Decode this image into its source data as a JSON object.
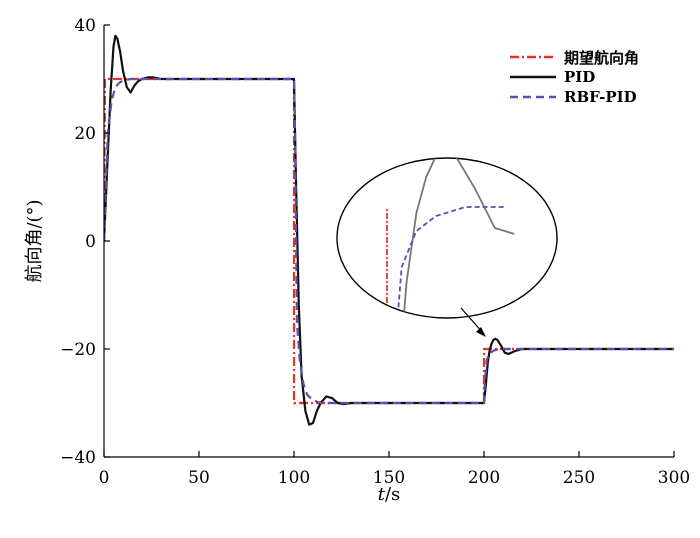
{
  "chart_data": {
    "type": "line",
    "title": "",
    "xlabel": "t/s",
    "ylabel": "航向角/(°)",
    "xlim": [
      0,
      300
    ],
    "ylim": [
      -40,
      40
    ],
    "xticks": [
      0,
      50,
      100,
      150,
      200,
      250,
      300
    ],
    "yticks": [
      -40,
      -20,
      0,
      20,
      40
    ],
    "ytick_labels": [
      "−40",
      "−20",
      "0",
      "20",
      "40"
    ],
    "grid": false,
    "legend_position": "top-right",
    "series": [
      {
        "name": "期望航向角",
        "color": "#e8302a",
        "style": "dash-dot",
        "x": [
          0,
          0.5,
          100,
          100,
          200,
          200,
          300
        ],
        "y": [
          0,
          30,
          30,
          -30,
          -30,
          -20,
          -20
        ]
      },
      {
        "name": "PID",
        "color": "#111111",
        "style": "solid",
        "x": [
          0,
          2,
          3.5,
          5,
          6,
          7,
          8.5,
          10,
          12,
          14,
          16,
          18,
          20,
          23,
          26,
          30,
          40,
          100,
          101,
          102.5,
          104,
          106,
          108,
          110,
          112,
          114,
          117,
          120,
          123,
          126,
          130,
          140,
          200,
          201,
          202,
          203,
          204,
          205,
          206,
          207,
          209,
          211,
          213,
          216,
          220,
          225,
          300
        ],
        "y": [
          0,
          16,
          28,
          36,
          38,
          37.5,
          35,
          31.5,
          28.5,
          27.5,
          28.8,
          29.6,
          30,
          30.3,
          30.3,
          30,
          30,
          30,
          12,
          -12,
          -25,
          -31.5,
          -34,
          -33.7,
          -31.5,
          -30,
          -28.8,
          -29.1,
          -30,
          -30.2,
          -30,
          -30,
          -30,
          -26.5,
          -22.5,
          -20.2,
          -19,
          -18.3,
          -18.1,
          -18.3,
          -19.4,
          -20.7,
          -20.9,
          -20.4,
          -20,
          -20,
          -20
        ]
      },
      {
        "name": "RBF-PID",
        "color": "#5a4fb0",
        "style": "dashed",
        "x": [
          0,
          2,
          4,
          6,
          8,
          10,
          14,
          30,
          100,
          100.5,
          101.5,
          103,
          105,
          107,
          110,
          114,
          118,
          130,
          200,
          200.5,
          201.5,
          203,
          205,
          208,
          212,
          300
        ],
        "y": [
          0,
          20,
          26,
          28.5,
          29.3,
          29.7,
          30,
          30,
          30,
          20,
          -15,
          -22,
          -26.5,
          -28.5,
          -29.5,
          -30,
          -30,
          -30,
          -30,
          -26,
          -22,
          -20.8,
          -20.3,
          -20,
          -20,
          -20
        ]
      }
    ],
    "annotations": [
      "inset ellipse magnifying the step response near t = 200 s"
    ]
  }
}
